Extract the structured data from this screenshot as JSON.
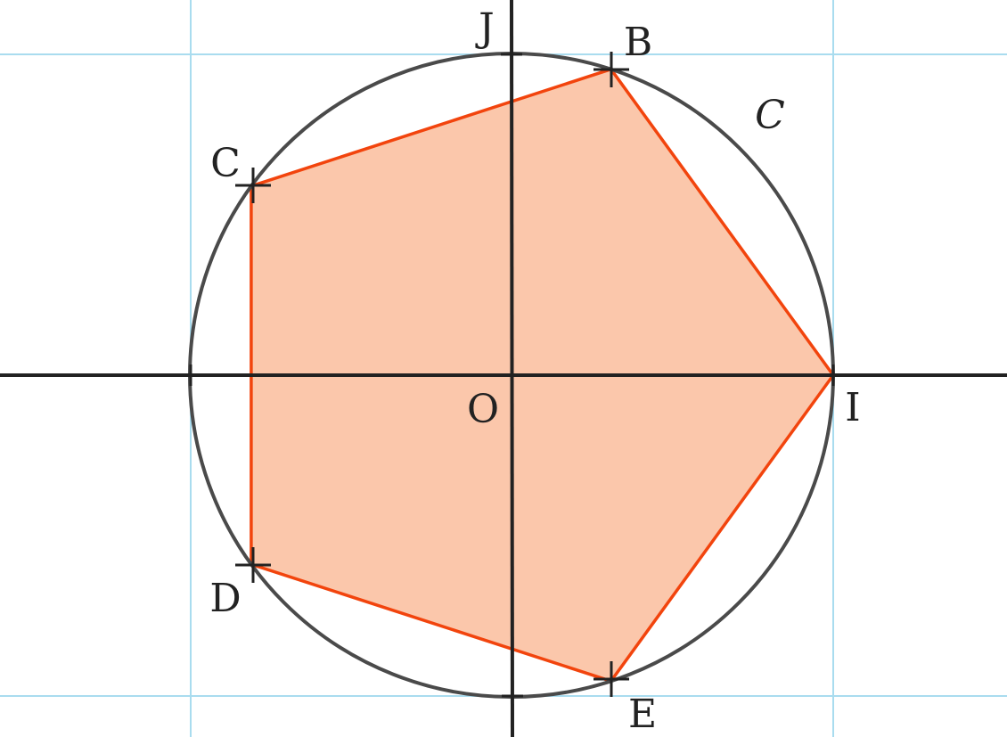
{
  "diagram": {
    "circle_name": "C",
    "center": {
      "label": "O",
      "x": 0,
      "y": 0
    },
    "radius": 1,
    "axis_points": [
      {
        "id": "I",
        "label": "I",
        "x": 1,
        "y": 0
      },
      {
        "id": "J",
        "label": "J",
        "x": 0,
        "y": 1
      }
    ],
    "pentagon_vertices": [
      {
        "id": "I",
        "label": "I",
        "angle_deg": 0
      },
      {
        "id": "B",
        "label": "B",
        "angle_deg": 72
      },
      {
        "id": "C",
        "label": "C",
        "angle_deg": 144
      },
      {
        "id": "D",
        "label": "D",
        "angle_deg": 216
      },
      {
        "id": "E",
        "label": "E",
        "angle_deg": 288
      }
    ],
    "colors": {
      "pentagon_fill": "#fbc7ab",
      "pentagon_stroke": "#f2440d",
      "circle_stroke": "#4a4a4a",
      "axis": "#222222",
      "grid": "#a9dcef"
    }
  }
}
